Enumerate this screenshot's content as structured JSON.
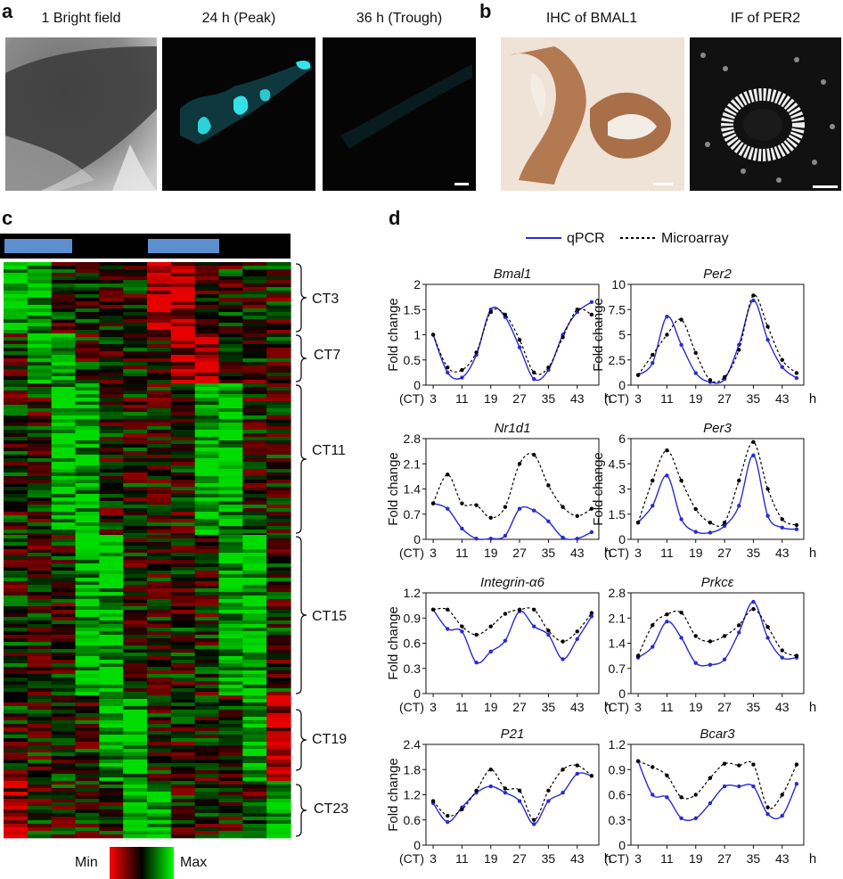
{
  "panels": {
    "a": {
      "letter": "a",
      "captions": [
        "1 Bright field",
        "24 h (Peak)",
        "36 h (Trough)"
      ]
    },
    "b": {
      "letter": "b",
      "captions": [
        "IHC of BMAL1",
        "IF of PER2"
      ]
    },
    "c": {
      "letter": "c",
      "clusters": [
        "CT3",
        "CT7",
        "CT11",
        "CT15",
        "CT19",
        "CT23"
      ],
      "legend_min": "Min",
      "legend_max": "Max",
      "colors": {
        "min": "#ff0000",
        "mid": "#000000",
        "max": "#00ff00",
        "lightbar": "#5b8fd0"
      }
    },
    "d": {
      "letter": "d",
      "legend": {
        "qpcr": "qPCR",
        "microarray": "Microarray"
      },
      "ylabel": "Fold change",
      "xprefix": "(CT)",
      "xunit": "h",
      "colors": {
        "qpcr": "#2a2ad0",
        "microarray": "#000000"
      }
    }
  },
  "chart_data": [
    {
      "type": "line",
      "title": "Bmal1",
      "ylabel": "Fold change",
      "x": [
        3,
        7,
        11,
        15,
        19,
        23,
        27,
        31,
        35,
        39,
        43,
        47
      ],
      "xticks": [
        "3",
        "11",
        "19",
        "27",
        "35",
        "43"
      ],
      "ylim": [
        0,
        2
      ],
      "yticks": [
        "0",
        "0.5",
        "1",
        "1.5",
        "2"
      ],
      "series": [
        {
          "name": "qPCR",
          "values": [
            1.0,
            0.25,
            0.15,
            0.6,
            1.5,
            1.35,
            0.75,
            0.12,
            0.3,
            1.0,
            1.45,
            1.65
          ]
        },
        {
          "name": "Microarray",
          "values": [
            1.0,
            0.35,
            0.3,
            0.65,
            1.45,
            1.4,
            0.9,
            0.25,
            0.35,
            0.95,
            1.5,
            1.4
          ]
        }
      ]
    },
    {
      "type": "line",
      "title": "Per2",
      "ylabel": "Fold change",
      "x": [
        3,
        7,
        11,
        15,
        19,
        23,
        27,
        31,
        35,
        39,
        43,
        47
      ],
      "xticks": [
        "3",
        "11",
        "19",
        "27",
        "35",
        "43"
      ],
      "ylim": [
        0,
        10
      ],
      "yticks": [
        "0",
        "2.5",
        "5",
        "7.5",
        "10"
      ],
      "series": [
        {
          "name": "qPCR",
          "values": [
            1.0,
            2.2,
            6.8,
            4.0,
            1.2,
            0.3,
            0.6,
            4.0,
            8.4,
            4.5,
            1.8,
            0.7
          ]
        },
        {
          "name": "Microarray",
          "values": [
            1.0,
            3.0,
            5.0,
            6.5,
            3.2,
            0.5,
            0.8,
            3.5,
            8.9,
            5.8,
            2.5,
            1.2
          ]
        }
      ]
    },
    {
      "type": "line",
      "title": "Nr1d1",
      "ylabel": "Fold change",
      "x": [
        3,
        7,
        11,
        15,
        19,
        23,
        27,
        31,
        35,
        39,
        43,
        47
      ],
      "xticks": [
        "3",
        "11",
        "19",
        "27",
        "35",
        "43"
      ],
      "ylim": [
        0,
        2.8
      ],
      "yticks": [
        "0",
        "0.7",
        "1.4",
        "2.1",
        "2.8"
      ],
      "series": [
        {
          "name": "qPCR",
          "values": [
            1.0,
            0.85,
            0.3,
            0.02,
            0.02,
            0.1,
            0.85,
            0.8,
            0.5,
            0.05,
            0.02,
            0.2
          ]
        },
        {
          "name": "Microarray",
          "values": [
            1.0,
            1.8,
            1.0,
            0.95,
            0.6,
            0.9,
            2.1,
            2.35,
            1.5,
            0.9,
            0.65,
            0.85
          ]
        }
      ]
    },
    {
      "type": "line",
      "title": "Per3",
      "ylabel": "Fold change",
      "x": [
        3,
        7,
        11,
        15,
        19,
        23,
        27,
        31,
        35,
        39,
        43,
        47
      ],
      "xticks": [
        "3",
        "11",
        "19",
        "27",
        "35",
        "43"
      ],
      "ylim": [
        0,
        6
      ],
      "yticks": [
        "0",
        "1.5",
        "3",
        "4.5",
        "6"
      ],
      "series": [
        {
          "name": "qPCR",
          "values": [
            1.0,
            2.0,
            3.8,
            1.2,
            0.45,
            0.4,
            0.8,
            2.0,
            5.0,
            1.4,
            0.7,
            0.6
          ]
        },
        {
          "name": "Microarray",
          "values": [
            1.0,
            3.5,
            5.3,
            3.5,
            1.8,
            1.0,
            1.0,
            3.5,
            5.8,
            3.0,
            1.2,
            0.85
          ]
        }
      ]
    },
    {
      "type": "line",
      "title": "Integrin-α6",
      "ylabel": "Fold change",
      "x": [
        3,
        7,
        11,
        15,
        19,
        23,
        27,
        31,
        35,
        39,
        43,
        47
      ],
      "xticks": [
        "3",
        "11",
        "19",
        "27",
        "35",
        "43"
      ],
      "ylim": [
        0,
        1.2
      ],
      "yticks": [
        "0",
        "0.3",
        "0.6",
        "0.9",
        "1.2"
      ],
      "series": [
        {
          "name": "qPCR",
          "values": [
            1.0,
            0.77,
            0.74,
            0.37,
            0.5,
            0.63,
            0.98,
            0.8,
            0.7,
            0.41,
            0.65,
            0.92
          ]
        },
        {
          "name": "Microarray",
          "values": [
            1.0,
            1.0,
            0.8,
            0.7,
            0.8,
            0.95,
            1.0,
            1.0,
            0.75,
            0.62,
            0.74,
            0.96
          ]
        }
      ]
    },
    {
      "type": "line",
      "title": "Prkcε",
      "ylabel": "",
      "x": [
        3,
        7,
        11,
        15,
        19,
        23,
        27,
        31,
        35,
        39,
        43,
        47
      ],
      "xticks": [
        "3",
        "11",
        "19",
        "27",
        "35",
        "43"
      ],
      "ylim": [
        0,
        2.8
      ],
      "yticks": [
        "0",
        "0.7",
        "1.4",
        "2.1",
        "2.8"
      ],
      "series": [
        {
          "name": "qPCR",
          "values": [
            1.0,
            1.3,
            2.0,
            1.55,
            0.85,
            0.8,
            0.95,
            1.7,
            2.55,
            1.55,
            1.0,
            1.0
          ]
        },
        {
          "name": "Microarray",
          "values": [
            1.05,
            1.9,
            2.2,
            2.25,
            1.6,
            1.45,
            1.6,
            1.9,
            2.35,
            1.85,
            1.2,
            1.05
          ]
        }
      ]
    },
    {
      "type": "line",
      "title": "P21",
      "ylabel": "Fold change",
      "x": [
        3,
        7,
        11,
        15,
        19,
        23,
        27,
        31,
        35,
        39,
        43,
        47
      ],
      "xticks": [
        "3",
        "11",
        "19",
        "27",
        "35",
        "43"
      ],
      "ylim": [
        0,
        2.4
      ],
      "yticks": [
        "0",
        "0.6",
        "1.2",
        "1.8",
        "2.4"
      ],
      "series": [
        {
          "name": "qPCR",
          "values": [
            1.0,
            0.55,
            0.9,
            1.25,
            1.4,
            1.25,
            1.05,
            0.5,
            1.05,
            1.25,
            1.7,
            1.65
          ]
        },
        {
          "name": "Microarray",
          "values": [
            1.05,
            0.7,
            0.85,
            1.3,
            1.8,
            1.35,
            1.3,
            0.6,
            1.3,
            1.8,
            1.9,
            1.65
          ]
        }
      ]
    },
    {
      "type": "line",
      "title": "Bcar3",
      "ylabel": "",
      "x": [
        3,
        7,
        11,
        15,
        19,
        23,
        27,
        31,
        35,
        39,
        43,
        47
      ],
      "xticks": [
        "3",
        "11",
        "19",
        "27",
        "35",
        "43"
      ],
      "ylim": [
        0,
        1.2
      ],
      "yticks": [
        "0",
        "0.3",
        "0.6",
        "0.9",
        "1.2"
      ],
      "series": [
        {
          "name": "qPCR",
          "values": [
            1.0,
            0.6,
            0.57,
            0.32,
            0.32,
            0.5,
            0.7,
            0.7,
            0.7,
            0.37,
            0.35,
            0.73
          ]
        },
        {
          "name": "Microarray",
          "values": [
            1.0,
            0.93,
            0.83,
            0.57,
            0.6,
            0.8,
            0.97,
            0.95,
            0.96,
            0.45,
            0.6,
            0.96
          ]
        }
      ]
    }
  ]
}
